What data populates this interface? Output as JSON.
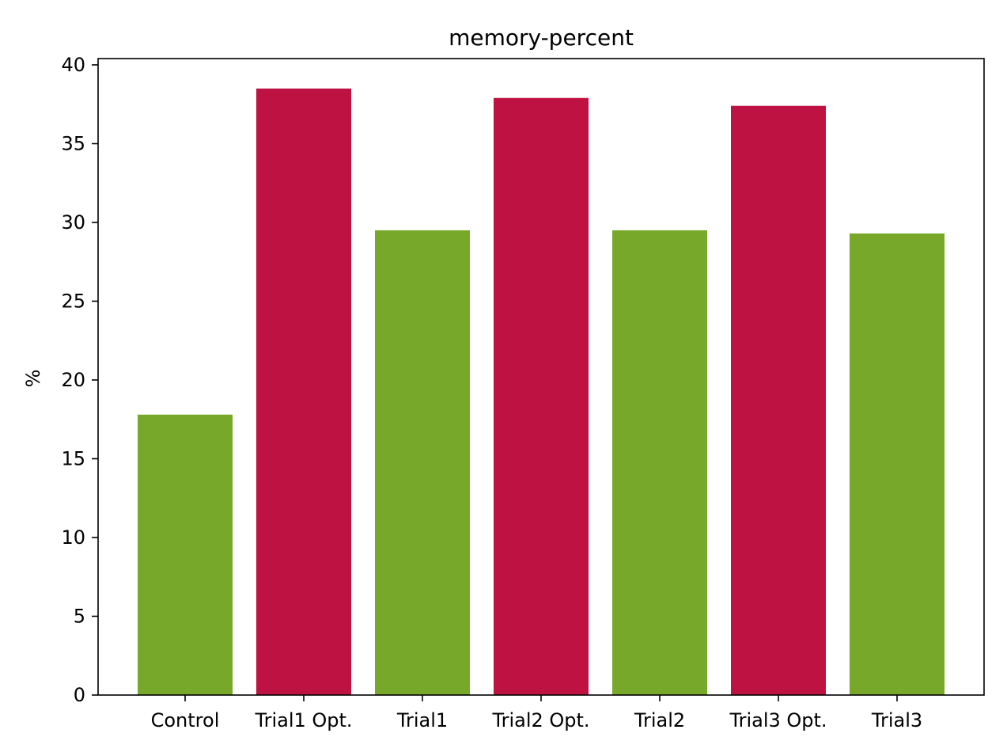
{
  "chart_data": {
    "type": "bar",
    "title": "memory-percent",
    "xlabel": "",
    "ylabel": "%",
    "categories": [
      "Control",
      "Trial1 Opt.",
      "Trial1",
      "Trial2 Opt.",
      "Trial2",
      "Trial3 Opt.",
      "Trial3"
    ],
    "values": [
      17.8,
      38.5,
      29.5,
      37.9,
      29.5,
      37.4,
      29.3
    ],
    "bar_colors": [
      "#77a82a",
      "#be1242",
      "#77a82a",
      "#be1242",
      "#77a82a",
      "#be1242",
      "#77a82a"
    ],
    "ylim": [
      0,
      40.4
    ],
    "yticks": [
      0,
      5,
      10,
      15,
      20,
      25,
      30,
      35,
      40
    ],
    "grid": false,
    "legend": "none"
  }
}
